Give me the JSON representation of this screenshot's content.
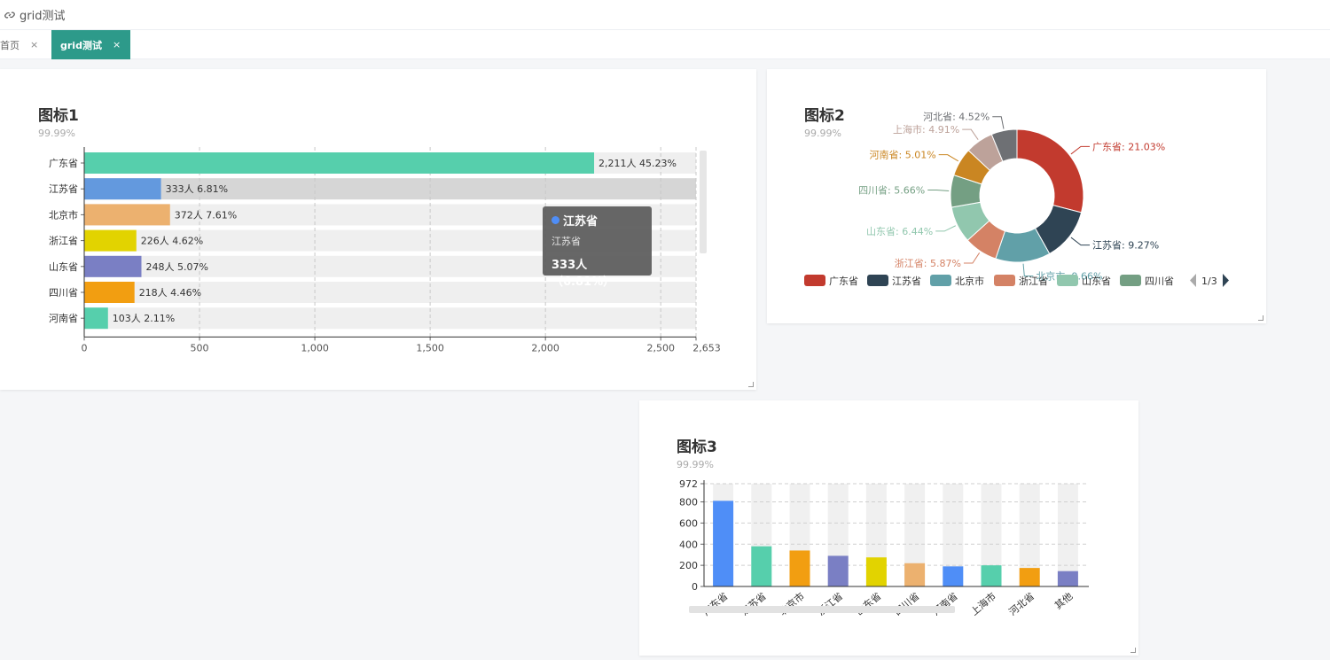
{
  "window": {
    "title": "grid测试",
    "title_icon": "link-icon"
  },
  "tabs": [
    {
      "label": "首页",
      "close": "×"
    },
    {
      "label": "grid测试",
      "close": "×"
    }
  ],
  "chart1": {
    "title": "图标1",
    "subtitle": "99.99%"
  },
  "chart2": {
    "title": "图标2",
    "subtitle": "99.99%",
    "legend_page": "1/3"
  },
  "chart3": {
    "title": "图标3",
    "subtitle": "99.99%"
  },
  "tooltip": {
    "name": "江苏省",
    "sub": "江苏省",
    "value": "333人（6.81%）",
    "dot_color": "#4f8ef7"
  },
  "chart_data": [
    {
      "type": "bar",
      "orientation": "horizontal",
      "title": "图标1",
      "subtitle": "99.99%",
      "categories": [
        "广东省",
        "江苏省",
        "北京市",
        "浙江省",
        "山东省",
        "四川省",
        "河南省"
      ],
      "values": [
        2211,
        333,
        372,
        226,
        248,
        218,
        103
      ],
      "labels": [
        "2,211人 45.23%",
        "333人 6.81%",
        "372人 7.61%",
        "226人 4.62%",
        "248人 5.07%",
        "218人 4.46%",
        "103人 2.11%"
      ],
      "colors": [
        "#56cfac",
        "#6399de",
        "#ecb16f",
        "#e2d300",
        "#7a7fc4",
        "#f29e11",
        "#56cfac"
      ],
      "xticks": [
        "0",
        "500",
        "1,000",
        "1,500",
        "2,000",
        "2,500",
        "2,653"
      ],
      "xtick_values": [
        0,
        500,
        1000,
        1500,
        2000,
        2500,
        2653
      ],
      "xlim": [
        0,
        2653
      ],
      "grid": true
    },
    {
      "type": "pie",
      "variant": "donut",
      "title": "图标2",
      "subtitle": "99.99%",
      "slices": [
        {
          "name": "广东省",
          "value": 21.03,
          "label": "广东省: 21.03%",
          "color": "#c23a2e"
        },
        {
          "name": "江苏省",
          "value": 9.27,
          "label": "江苏省: 9.27%",
          "color": "#2f4454"
        },
        {
          "name": "北京市",
          "value": 9.66,
          "label": "北京市: 9.66%",
          "color": "#61a0a8"
        },
        {
          "name": "浙江省",
          "value": 5.87,
          "label": "浙江省: 5.87%",
          "color": "#d48265"
        },
        {
          "name": "山东省",
          "value": 6.44,
          "label": "山东省: 6.44%",
          "color": "#91c7ae"
        },
        {
          "name": "四川省",
          "value": 5.66,
          "label": "四川省: 5.66%",
          "color": "#749f83"
        },
        {
          "name": "河南省",
          "value": 5.01,
          "label": "河南省: 5.01%",
          "color": "#ca8622"
        },
        {
          "name": "上海市",
          "value": 4.91,
          "label": "上海市: 4.91%",
          "color": "#bda29a"
        },
        {
          "name": "河北省",
          "value": 4.52,
          "label": "河北省: 4.52%",
          "color": "#6e7074"
        }
      ],
      "legend": [
        "广东省",
        "江苏省",
        "北京市",
        "浙江省",
        "山东省",
        "四川省"
      ],
      "legend_placement": "bottom"
    },
    {
      "type": "bar",
      "title": "图标3",
      "subtitle": "99.99%",
      "categories": [
        "广东省",
        "江苏省",
        "北京市",
        "浙江省",
        "山东省",
        "四川省",
        "河南省",
        "上海市",
        "河北省",
        "其他"
      ],
      "values": [
        810,
        380,
        340,
        290,
        275,
        220,
        190,
        200,
        175,
        145
      ],
      "colors": [
        "#4f8ef7",
        "#56cfac",
        "#f29e11",
        "#7a7fc4",
        "#e2d300",
        "#ecb16f",
        "#4f8ef7",
        "#56cfac",
        "#f29e11",
        "#7a7fc4"
      ],
      "yticks": [
        "0",
        "200",
        "400",
        "600",
        "800",
        "972"
      ],
      "ytick_values": [
        0,
        200,
        400,
        600,
        800,
        972
      ],
      "ylim": [
        0,
        972
      ],
      "grid": true
    }
  ]
}
